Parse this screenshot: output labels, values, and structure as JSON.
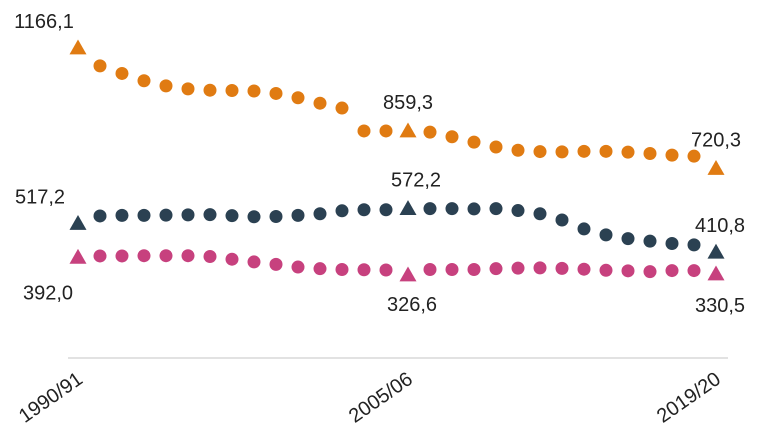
{
  "chart_data": {
    "type": "scatter",
    "categories": [
      "1990/91",
      "1991/92",
      "1992/93",
      "1993/94",
      "1994/95",
      "1995/96",
      "1996/97",
      "1997/98",
      "1998/99",
      "1999/00",
      "2000/01",
      "2001/02",
      "2002/03",
      "2003/04",
      "2004/05",
      "2005/06",
      "2006/07",
      "2007/08",
      "2008/09",
      "2009/10",
      "2010/11",
      "2011/12",
      "2012/13",
      "2013/14",
      "2014/15",
      "2015/16",
      "2016/17",
      "2017/18",
      "2018/19",
      "2019/20"
    ],
    "x_tick_labels": [
      "1990/91",
      "2005/06",
      "2019/20"
    ],
    "x_tick_indices": [
      0,
      15,
      29
    ],
    "y_range": [
      150,
      1200
    ],
    "grid": false,
    "legend": "none",
    "series": [
      {
        "color": "#e07b12",
        "marker_highlights": [
          0,
          15,
          29
        ],
        "values": [
          1166.1,
          1100,
          1072,
          1045,
          1026,
          1015,
          1010,
          1009,
          1007,
          998,
          982,
          962,
          944,
          859.3,
          859.3,
          859.3,
          855,
          838,
          818,
          800,
          788,
          783,
          782,
          784,
          784,
          781,
          776,
          770,
          766,
          720.3
        ]
      },
      {
        "color": "#2b4152",
        "marker_highlights": [
          0,
          15,
          29
        ],
        "values": [
          517.2,
          545,
          547,
          547,
          548,
          549,
          550,
          546,
          542,
          543,
          547,
          553,
          564,
          568,
          568,
          572.2,
          572,
          572,
          571,
          572,
          565,
          553,
          530,
          497,
          475,
          461,
          452,
          443,
          438,
          410.8
        ]
      },
      {
        "color": "#c7417e",
        "marker_highlights": [
          0,
          15,
          29
        ],
        "values": [
          392.0,
          397,
          397,
          398,
          398,
          398,
          395,
          385,
          375,
          366,
          356,
          350,
          347,
          346,
          345,
          326.6,
          347,
          347,
          347,
          350,
          352,
          353,
          351,
          348,
          344,
          342,
          339,
          343,
          343,
          330.5
        ]
      }
    ],
    "data_labels": [
      {
        "text": "1166,1",
        "series": 0,
        "index": 0
      },
      {
        "text": "859,3",
        "series": 0,
        "index": 15
      },
      {
        "text": "720,3",
        "series": 0,
        "index": 29
      },
      {
        "text": "517,2",
        "series": 1,
        "index": 0
      },
      {
        "text": "572,2",
        "series": 1,
        "index": 15
      },
      {
        "text": "410,8",
        "series": 1,
        "index": 29
      },
      {
        "text": "392,0",
        "series": 2,
        "index": 0
      },
      {
        "text": "326,6",
        "series": 2,
        "index": 15
      },
      {
        "text": "330,5",
        "series": 2,
        "index": 29
      }
    ]
  }
}
